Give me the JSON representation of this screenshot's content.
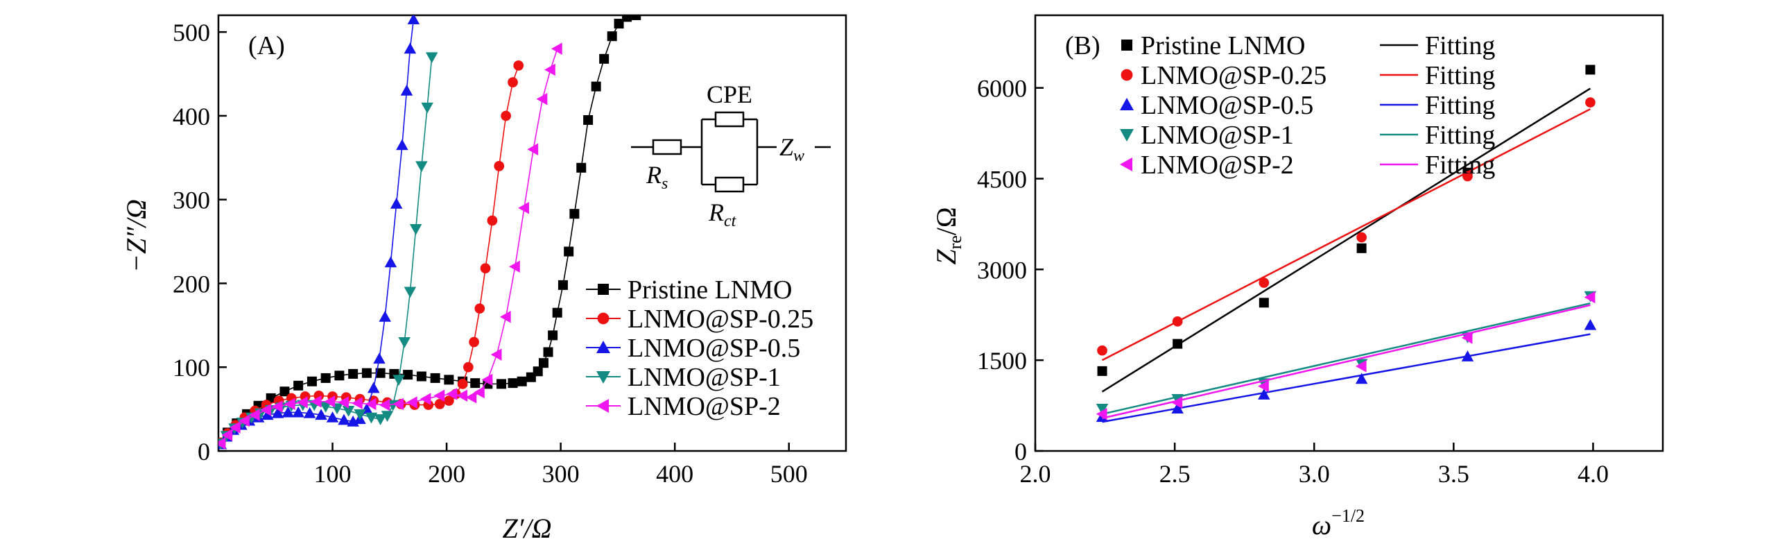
{
  "chart_data": [
    {
      "panel_label": "(A)",
      "type": "scatter",
      "xlabel": "Z′/Ω",
      "ylabel": "−Z″/Ω",
      "xlim": [
        0,
        550
      ],
      "ylim": [
        0,
        520
      ],
      "xticks": [
        100,
        200,
        300,
        400,
        500
      ],
      "yticks": [
        0,
        100,
        200,
        300,
        400,
        500
      ],
      "legend_position": "lower-right",
      "inset_circuit": {
        "labels": [
          "CPE",
          "R",
          "s",
          "R",
          "ct",
          "Z",
          "w"
        ]
      },
      "series": [
        {
          "name": "Pristine LNMO",
          "color": "#000000",
          "marker": "square",
          "x": [
            2,
            8,
            16,
            25,
            35,
            46,
            58,
            70,
            82,
            94,
            106,
            118,
            130,
            142,
            154,
            166,
            178,
            190,
            202,
            214,
            225,
            236,
            248,
            258,
            266,
            274,
            280,
            285,
            289,
            293,
            297,
            302,
            307,
            312,
            318,
            324,
            331,
            338,
            345,
            351,
            358,
            366
          ],
          "y": [
            10,
            22,
            33,
            44,
            54,
            63,
            71,
            78,
            83,
            87,
            90,
            92,
            93,
            93,
            92,
            91,
            89,
            87,
            85,
            83,
            81,
            80,
            80,
            81,
            83,
            88,
            95,
            105,
            118,
            138,
            165,
            198,
            238,
            283,
            338,
            395,
            435,
            468,
            495,
            510,
            518,
            520
          ]
        },
        {
          "name": "LNMO@SP-0.25",
          "color": "#ee1111",
          "marker": "circle",
          "x": [
            2,
            8,
            15,
            23,
            32,
            42,
            53,
            64,
            76,
            88,
            100,
            112,
            124,
            136,
            148,
            160,
            172,
            184,
            194,
            202,
            208,
            214,
            219,
            224,
            229,
            234,
            240,
            246,
            252,
            258,
            263
          ],
          "y": [
            10,
            21,
            31,
            40,
            48,
            55,
            60,
            63,
            65,
            66,
            65,
            64,
            62,
            60,
            58,
            56,
            55,
            55,
            56,
            60,
            68,
            80,
            100,
            130,
            170,
            218,
            275,
            340,
            400,
            440,
            460
          ]
        },
        {
          "name": "LNMO@SP-0.5",
          "color": "#1515e8",
          "marker": "triangle-up",
          "x": [
            2,
            7,
            13,
            20,
            27,
            35,
            43,
            52,
            61,
            70,
            80,
            90,
            100,
            110,
            118,
            124,
            130,
            136,
            141,
            146,
            151,
            156,
            161,
            165,
            168,
            171
          ],
          "y": [
            8,
            17,
            25,
            31,
            36,
            40,
            43,
            45,
            46,
            46,
            45,
            43,
            40,
            37,
            35,
            38,
            50,
            75,
            110,
            160,
            225,
            295,
            365,
            430,
            480,
            515
          ]
        },
        {
          "name": "LNMO@SP-1",
          "color": "#138a82",
          "marker": "triangle-down",
          "x": [
            2,
            7,
            14,
            21,
            29,
            37,
            46,
            55,
            64,
            74,
            84,
            94,
            104,
            114,
            124,
            134,
            142,
            148,
            153,
            158,
            163,
            168,
            173,
            178,
            183,
            187
          ],
          "y": [
            9,
            18,
            27,
            34,
            40,
            45,
            49,
            52,
            54,
            55,
            55,
            53,
            51,
            48,
            44,
            40,
            38,
            42,
            55,
            85,
            130,
            190,
            265,
            340,
            410,
            470
          ]
        },
        {
          "name": "LNMO@SP-2",
          "color": "#f016f0",
          "marker": "triangle-left",
          "x": [
            2,
            8,
            15,
            23,
            32,
            42,
            52,
            63,
            74,
            86,
            98,
            110,
            122,
            134,
            146,
            158,
            170,
            182,
            194,
            205,
            214,
            222,
            229,
            236,
            244,
            252,
            260,
            268,
            276,
            284,
            291,
            297
          ],
          "y": [
            9,
            19,
            28,
            36,
            43,
            49,
            53,
            56,
            58,
            59,
            59,
            58,
            57,
            56,
            55,
            56,
            58,
            62,
            66,
            68,
            66,
            64,
            70,
            85,
            115,
            160,
            220,
            290,
            360,
            420,
            455,
            480
          ]
        }
      ]
    },
    {
      "panel_label": "(B)",
      "type": "scatter",
      "xlabel": "ω",
      "xlabel_superscript": "−1/2",
      "ylabel": "Z",
      "ylabel_subscript": "re",
      "ylabel_suffix": "/Ω",
      "xlim": [
        2.0,
        4.25
      ],
      "ylim": [
        0,
        7200
      ],
      "xticks": [
        "2.0",
        "2.5",
        "3.0",
        "3.5",
        "4.0"
      ],
      "yticks": [
        "0",
        "1500",
        "3000",
        "4500",
        "6000"
      ],
      "legend_position": "top-left",
      "fit_label": "Fitting",
      "series": [
        {
          "name": "Pristine LNMO",
          "color": "#000000",
          "marker": "square",
          "x": [
            2.24,
            2.51,
            2.82,
            3.17,
            3.55,
            3.99
          ],
          "y": [
            1320,
            1770,
            2450,
            3350,
            4600,
            6300
          ],
          "fit": [
            980,
            5990
          ]
        },
        {
          "name": "LNMO@SP-0.25",
          "color": "#ee1111",
          "marker": "circle",
          "x": [
            2.24,
            2.51,
            2.82,
            3.17,
            3.55,
            3.99
          ],
          "y": [
            1660,
            2140,
            2780,
            3530,
            4540,
            5760
          ],
          "fit": [
            1500,
            5650
          ]
        },
        {
          "name": "LNMO@SP-0.5",
          "color": "#1515e8",
          "marker": "triangle-up",
          "x": [
            2.24,
            2.51,
            2.82,
            3.17,
            3.55,
            3.99
          ],
          "y": [
            560,
            700,
            930,
            1190,
            1560,
            2080
          ],
          "fit": [
            480,
            1930
          ]
        },
        {
          "name": "LNMO@SP-1",
          "color": "#138a82",
          "marker": "triangle-down",
          "x": [
            2.24,
            2.51,
            2.82,
            3.17,
            3.55,
            3.99
          ],
          "y": [
            700,
            860,
            1120,
            1440,
            1880,
            2560
          ],
          "fit": [
            610,
            2440
          ]
        },
        {
          "name": "LNMO@SP-2",
          "color": "#f016f0",
          "marker": "triangle-left",
          "x": [
            2.24,
            2.51,
            2.82,
            3.17,
            3.55,
            3.99
          ],
          "y": [
            610,
            800,
            1070,
            1400,
            1870,
            2540
          ],
          "fit": [
            540,
            2410
          ]
        }
      ]
    }
  ]
}
